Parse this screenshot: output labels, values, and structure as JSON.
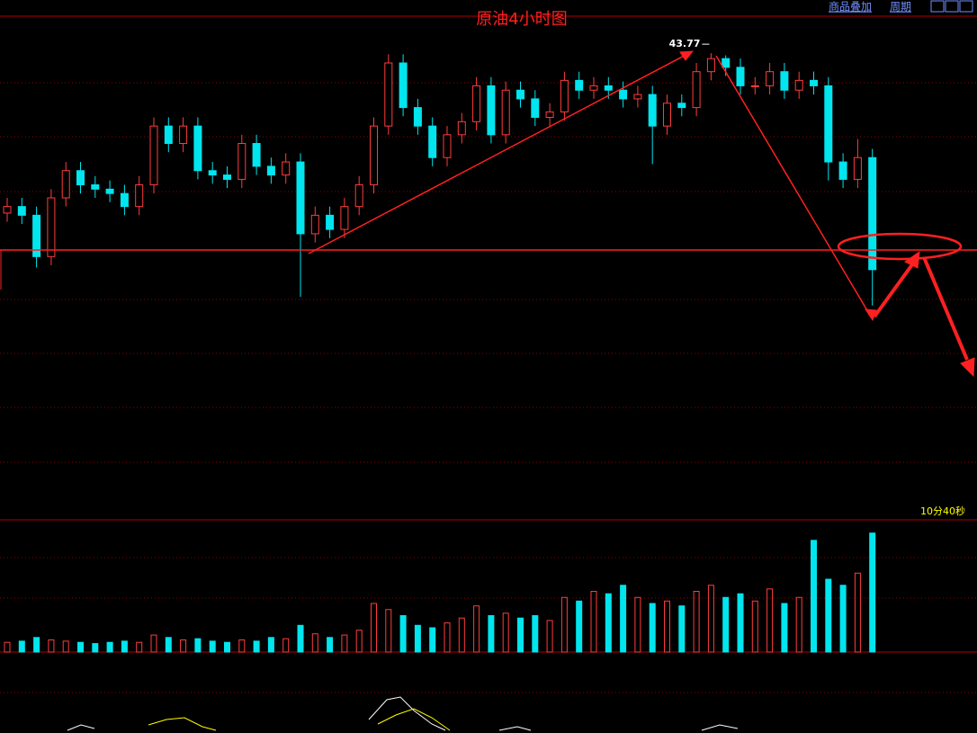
{
  "chart_data": {
    "type": "candlestick",
    "title": "原油4小时图",
    "open": [
      42.3,
      42.36,
      42.28,
      41.9,
      42.44,
      42.69,
      42.56,
      42.52,
      42.48,
      42.36,
      42.56,
      43.1,
      42.94,
      43.1,
      42.69,
      42.65,
      42.61,
      42.94,
      42.73,
      42.65,
      42.77,
      42.11,
      42.28,
      42.15,
      42.36,
      42.56,
      43.1,
      43.68,
      43.27,
      43.1,
      42.81,
      43.02,
      43.14,
      43.47,
      43.02,
      43.43,
      43.35,
      43.18,
      43.23,
      43.52,
      43.43,
      43.47,
      43.43,
      43.35,
      43.39,
      43.1,
      43.31,
      43.27,
      43.6,
      43.72,
      43.64,
      43.47,
      43.47,
      43.6,
      43.43,
      43.52,
      43.47,
      42.77,
      42.61,
      42.81
    ],
    "high": [
      42.44,
      42.44,
      42.36,
      42.52,
      42.77,
      42.77,
      42.64,
      42.6,
      42.56,
      42.64,
      43.18,
      43.18,
      43.18,
      43.18,
      42.77,
      42.73,
      43.02,
      43.02,
      42.81,
      42.85,
      42.85,
      42.36,
      42.36,
      42.44,
      42.64,
      43.18,
      43.76,
      43.76,
      43.35,
      43.18,
      43.1,
      43.22,
      43.55,
      43.55,
      43.51,
      43.51,
      43.43,
      43.31,
      43.6,
      43.6,
      43.55,
      43.55,
      43.51,
      43.47,
      43.47,
      43.39,
      43.39,
      43.68,
      43.77,
      43.75,
      43.72,
      43.55,
      43.68,
      43.68,
      43.6,
      43.6,
      43.55,
      42.85,
      42.98,
      42.89
    ],
    "low": [
      42.22,
      42.2,
      41.8,
      41.82,
      42.36,
      42.48,
      42.44,
      42.4,
      42.28,
      42.28,
      42.48,
      42.86,
      42.86,
      42.61,
      42.57,
      42.53,
      42.53,
      42.65,
      42.57,
      42.57,
      41.53,
      42.03,
      42.07,
      42.07,
      42.28,
      42.48,
      43.02,
      43.19,
      43.02,
      42.73,
      42.73,
      42.94,
      43.06,
      42.94,
      42.94,
      43.27,
      43.1,
      43.1,
      43.15,
      43.35,
      43.35,
      43.35,
      43.27,
      43.27,
      42.75,
      43.02,
      43.19,
      43.19,
      43.52,
      43.56,
      43.39,
      43.39,
      43.39,
      43.35,
      43.35,
      43.39,
      42.6,
      42.53,
      42.53,
      41.45
    ],
    "close": [
      42.36,
      42.28,
      41.9,
      42.44,
      42.69,
      42.56,
      42.52,
      42.48,
      42.36,
      42.56,
      43.1,
      42.94,
      43.1,
      42.69,
      42.65,
      42.61,
      42.94,
      42.73,
      42.65,
      42.77,
      42.11,
      42.28,
      42.15,
      42.36,
      42.56,
      43.1,
      43.68,
      43.27,
      43.1,
      42.81,
      43.02,
      43.14,
      43.47,
      43.02,
      43.43,
      43.35,
      43.18,
      43.23,
      43.52,
      43.43,
      43.47,
      43.43,
      43.35,
      43.39,
      43.1,
      43.31,
      43.27,
      43.6,
      43.72,
      43.64,
      43.47,
      43.47,
      43.6,
      43.43,
      43.52,
      43.47,
      42.77,
      42.61,
      42.81,
      41.78
    ],
    "volume": [
      8,
      9,
      12,
      10,
      9,
      8,
      7,
      8,
      9,
      8,
      14,
      12,
      10,
      11,
      9,
      8,
      10,
      9,
      12,
      11,
      22,
      15,
      12,
      14,
      18,
      40,
      35,
      30,
      22,
      20,
      24,
      28,
      38,
      30,
      32,
      28,
      30,
      26,
      45,
      42,
      50,
      48,
      55,
      45,
      40,
      42,
      38,
      50,
      55,
      45,
      48,
      42,
      52,
      40,
      45,
      92,
      60,
      55,
      65,
      98
    ],
    "ylim": [
      39.48,
      44.11
    ],
    "vlim": [
      0,
      100
    ],
    "up_color": "#ff3c3c",
    "down_color": "#00e5ee",
    "countdown": "10分40秒"
  },
  "toolbar": [
    "商品叠加",
    "周期"
  ]
}
